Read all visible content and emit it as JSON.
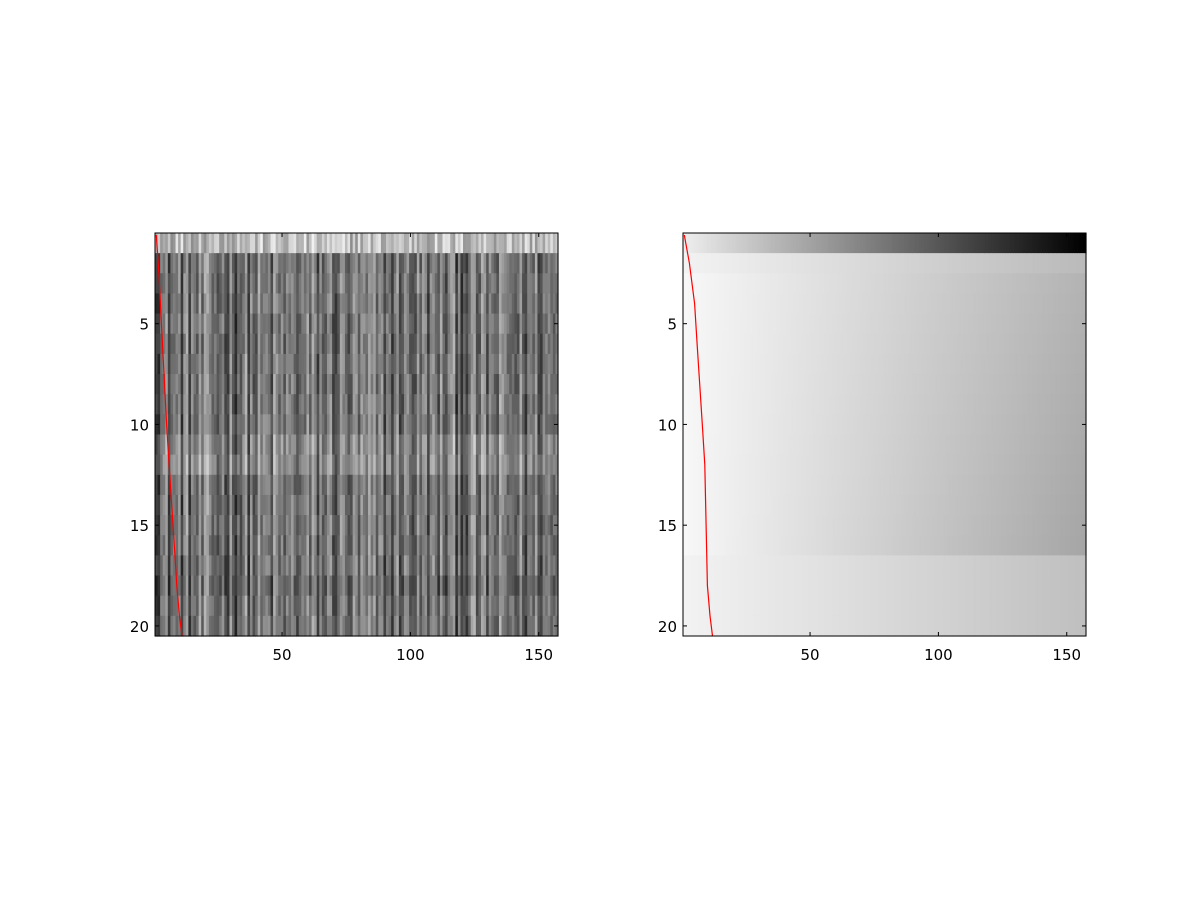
{
  "chart_data": [
    {
      "type": "heatmap",
      "title": "",
      "xlabel": "",
      "ylabel": "",
      "colormap": "gray",
      "rows": 20,
      "cols": 157,
      "xlim": [
        0.5,
        157.5
      ],
      "ylim": [
        0.5,
        20.5
      ],
      "y_reversed": true,
      "xticks": [
        50,
        100,
        150
      ],
      "yticks": [
        5,
        10,
        15,
        20
      ],
      "description": "noisy grayscale matrix; first row bright, remaining rows dark with bright vertical streaks",
      "overlay_line": {
        "color": "#ff0000",
        "x": [
          1,
          2,
          3,
          4,
          5,
          6,
          7,
          8,
          9,
          10,
          11
        ],
        "y": [
          0.6,
          2.5,
          5,
          7.5,
          10,
          12,
          14,
          16,
          18,
          19.5,
          20.5
        ]
      }
    },
    {
      "type": "heatmap",
      "title": "",
      "xlabel": "",
      "ylabel": "",
      "colormap": "gray",
      "rows": 20,
      "cols": 157,
      "xlim": [
        0.5,
        157.5
      ],
      "ylim": [
        0.5,
        20.5
      ],
      "y_reversed": true,
      "xticks": [
        50,
        100,
        150
      ],
      "yticks": [
        5,
        10,
        15,
        20
      ],
      "description": "smooth grayscale matrix; row 1 goes light to black left-to-right, rows 2-16 light fading to mid gray, rows 17-20 lighter",
      "overlay_line": {
        "color": "#ff0000",
        "x": [
          1,
          3,
          5,
          6,
          7,
          8,
          9,
          9.5,
          10,
          11,
          12
        ],
        "y": [
          0.6,
          2,
          4,
          6,
          8,
          10,
          12,
          15,
          18,
          19.5,
          20.5
        ]
      }
    }
  ]
}
